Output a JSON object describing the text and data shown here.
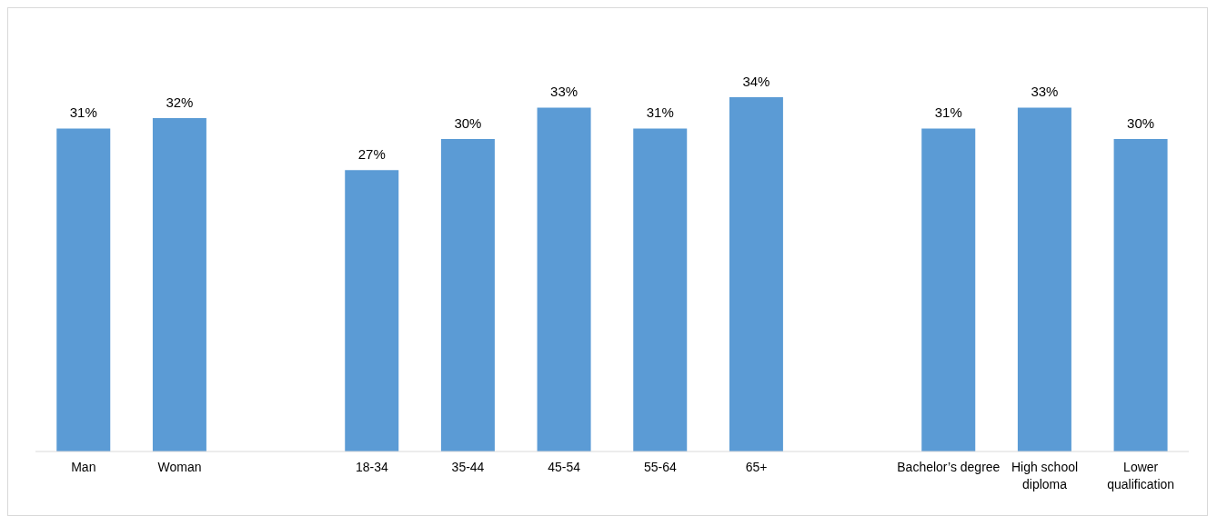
{
  "chart_data": {
    "type": "bar",
    "categories": [
      "Man",
      "Woman",
      null,
      "18-34",
      "35-44",
      "45-54",
      "55-64",
      "65+",
      null,
      "Bachelor’s degree",
      "High school diploma",
      "Lower qualification"
    ],
    "values": [
      31,
      32,
      null,
      27,
      30,
      33,
      31,
      34,
      null,
      31,
      33,
      30
    ],
    "value_labels": [
      "31%",
      "32%",
      null,
      "27%",
      "30%",
      "33%",
      "31%",
      "34%",
      null,
      "31%",
      "33%",
      "30%"
    ],
    "color": "#5b9bd5",
    "grid": false,
    "legend": false
  }
}
